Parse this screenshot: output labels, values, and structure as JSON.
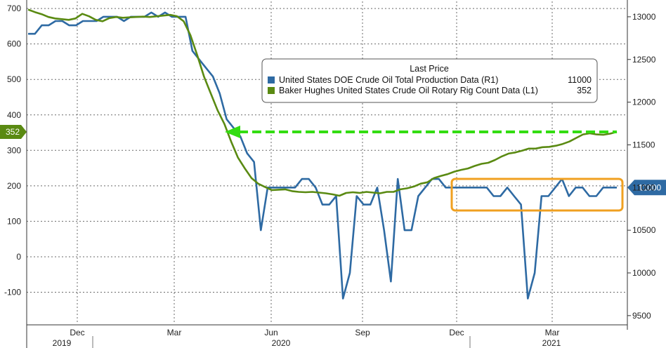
{
  "chart_data": {
    "type": "line",
    "legend": {
      "title": "Last Price",
      "entries": [
        {
          "label": "United States DOE Crude Oil Total Production Data  (R1)",
          "value": "11000",
          "color": "#2e6aa3"
        },
        {
          "label": "Baker Hughes United States Crude Oil Rotary Rig Count Data  (L1)",
          "value": "352",
          "color": "#5a8a12"
        }
      ]
    },
    "x_axis": {
      "month_labels": [
        "Dec",
        "Mar",
        "Jun",
        "Sep",
        "Dec",
        "Mar"
      ],
      "year_labels": [
        "2019",
        "2020",
        "2021"
      ]
    },
    "left_axis": {
      "ylim": [
        -190,
        720
      ],
      "ticks": [
        700,
        600,
        500,
        400,
        300,
        200,
        100,
        0,
        -100
      ]
    },
    "right_axis": {
      "ylim": [
        9400,
        13180
      ],
      "ticks": [
        13000,
        12500,
        12000,
        11500,
        11000,
        10500,
        10000,
        9500
      ]
    },
    "last_value_badges": {
      "left": "352",
      "right": "11000"
    },
    "series": [
      {
        "name": "Baker Hughes United States Crude Oil Rotary Rig Count Data",
        "axis": "left",
        "color": "#5a8a12",
        "values": [
          697,
          690,
          684,
          676,
          672,
          670,
          668,
          672,
          685,
          678,
          668,
          664,
          673,
          676,
          674,
          675,
          676,
          677,
          676,
          678,
          680,
          682,
          678,
          664,
          624,
          568,
          508,
          460,
          413,
          375,
          325,
          280,
          250,
          222,
          206,
          197,
          188,
          189,
          190,
          185,
          183,
          182,
          183,
          181,
          179,
          176,
          172,
          180,
          182,
          180,
          183,
          181,
          179,
          183,
          183,
          190,
          193,
          198,
          206,
          210,
          222,
          228,
          233,
          240,
          245,
          249,
          256,
          262,
          265,
          273,
          283,
          291,
          294,
          299,
          305,
          305,
          309,
          310,
          313,
          318,
          325,
          335,
          345,
          348,
          345,
          344,
          347,
          352
        ]
      },
      {
        "name": "United States DOE Crude Oil Total Production Data",
        "axis": "right",
        "color": "#2e6aa3",
        "values": [
          12800,
          12800,
          12900,
          12900,
          12950,
          12950,
          12900,
          12900,
          12950,
          12950,
          12950,
          13000,
          13000,
          13000,
          12950,
          13000,
          13000,
          13000,
          13050,
          13000,
          13050,
          13000,
          13000,
          13000,
          12600,
          12500,
          12400,
          12300,
          12100,
          11800,
          11700,
          11600,
          11400,
          11300,
          10500,
          11000,
          11000,
          11000,
          11000,
          11000,
          11100,
          11100,
          11000,
          10800,
          10800,
          10900,
          9700,
          10000,
          10900,
          10800,
          10800,
          11000,
          10500,
          9900,
          11100,
          10500,
          10500,
          10900,
          11000,
          11100,
          11100,
          11000,
          11000,
          11000,
          11000,
          11000,
          11000,
          11000,
          10900,
          10900,
          11000,
          10900,
          10800,
          9700,
          10000,
          10900,
          10900,
          11000,
          11100,
          10900,
          11000,
          11000,
          10900,
          10900,
          11000,
          11000,
          11000
        ]
      }
    ],
    "annotations": {
      "arrow_color": "#33dd11",
      "box_color": "#f0a020"
    }
  }
}
